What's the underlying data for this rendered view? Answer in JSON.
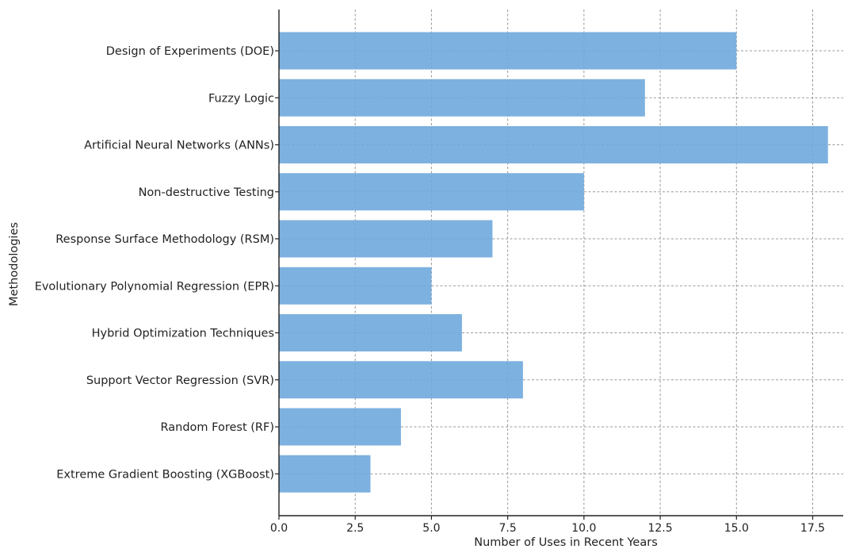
{
  "chart_data": {
    "type": "bar",
    "orientation": "horizontal",
    "title": "",
    "xlabel": "Number of Uses in Recent Years",
    "ylabel": "Methodologies",
    "categories": [
      "Design of Experiments (DOE)",
      "Fuzzy Logic",
      "Artificial Neural Networks (ANNs)",
      "Non-destructive Testing",
      "Response Surface Methodology (RSM)",
      "Evolutionary Polynomial Regression (EPR)",
      "Hybrid Optimization Techniques",
      "Support Vector Regression (SVR)",
      "Random Forest (RF)",
      "Extreme Gradient Boosting (XGBoost)"
    ],
    "values": [
      15,
      12,
      18,
      10,
      7,
      5,
      6,
      8,
      4,
      3
    ],
    "xlim": [
      0,
      18.5
    ],
    "xticks": [
      0,
      2.5,
      5,
      7.5,
      10,
      12.5,
      15,
      17.5
    ],
    "xtick_labels": [
      "0.0",
      "2.5",
      "5.0",
      "7.5",
      "10.0",
      "12.5",
      "15.0",
      "17.5"
    ],
    "grid": true,
    "bar_color": "#6fa8dc",
    "bar_opacity": 0.9
  }
}
